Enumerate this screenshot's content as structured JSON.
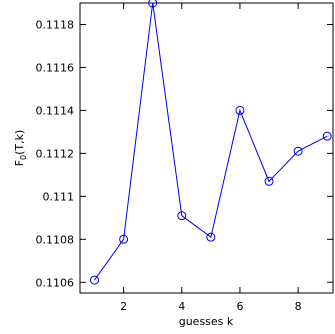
{
  "chart_data": {
    "type": "line",
    "xlabel": "guesses k",
    "ylabel": "F",
    "ylabel_subscript": "0",
    "ylabel_suffix": "(T,k)",
    "xlim": [
      0.5,
      9.2
    ],
    "ylim": [
      0.11055,
      0.1119
    ],
    "xticks": [
      2,
      4,
      6,
      8
    ],
    "yticks": [
      0.1106,
      0.1108,
      0.111,
      0.1112,
      0.1114,
      0.1116,
      0.1118
    ],
    "ytick_labels": [
      "0.1106",
      "0.1108",
      "0.111",
      "0.1112",
      "0.1114",
      "0.1116",
      "0.1118"
    ],
    "xtick_labels": [
      "2",
      "4",
      "6",
      "8"
    ],
    "grid": false,
    "series": [
      {
        "color": "#0000ee",
        "marker": "open-circle",
        "x": [
          1,
          2,
          3,
          4,
          5,
          6,
          7,
          8,
          9
        ],
        "y": [
          0.11061,
          0.1108,
          0.1119,
          0.11091,
          0.11081,
          0.1114,
          0.11107,
          0.11121,
          0.11128
        ]
      }
    ]
  }
}
